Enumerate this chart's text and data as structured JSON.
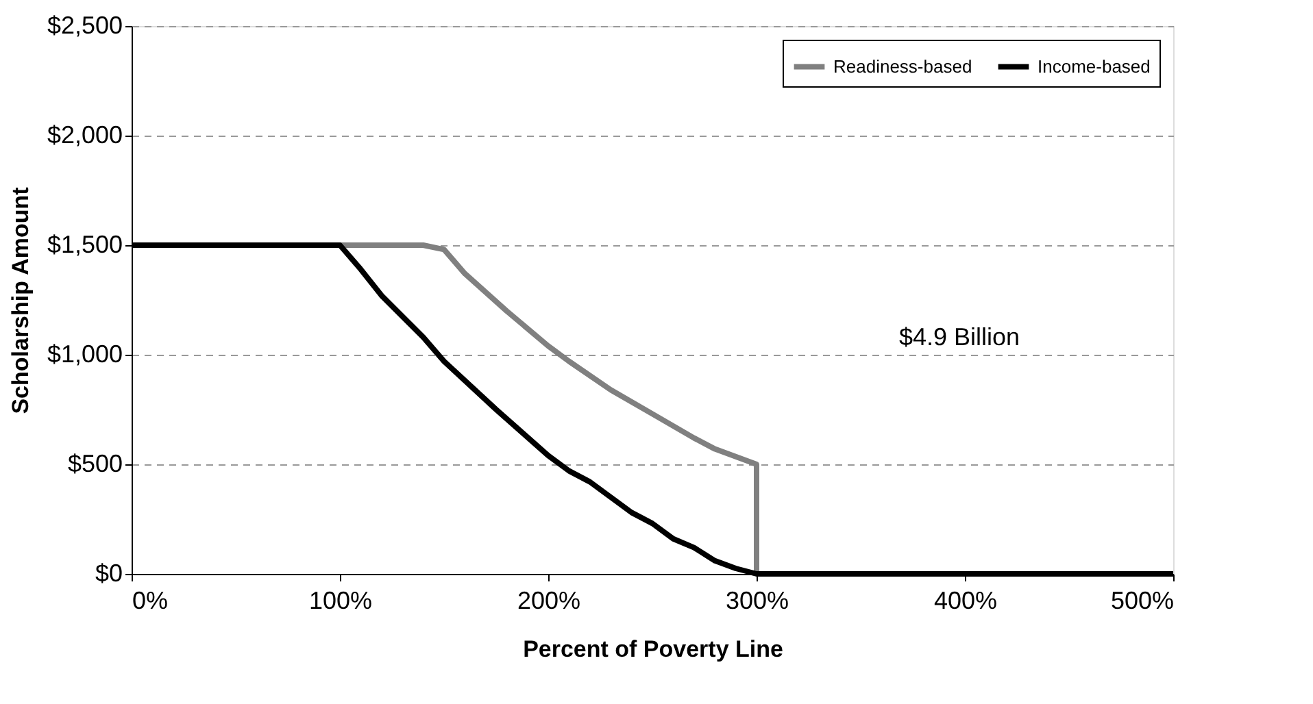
{
  "chart_data": {
    "type": "line",
    "xlabel": "Percent of Poverty Line",
    "ylabel": "Scholarship Amount",
    "series": [
      {
        "name": "Readiness-based",
        "color": "#808080",
        "x": [
          0,
          100,
          140,
          150,
          160,
          180,
          200,
          210,
          230,
          250,
          270,
          280,
          300,
          300
        ],
        "values": [
          1500,
          1500,
          1500,
          1480,
          1370,
          1200,
          1040,
          970,
          840,
          730,
          620,
          570,
          500,
          0
        ]
      },
      {
        "name": "Income-based",
        "color": "#000000",
        "x": [
          0,
          100,
          110,
          120,
          140,
          150,
          175,
          200,
          210,
          220,
          240,
          250,
          260,
          270,
          280,
          290,
          300,
          500
        ],
        "values": [
          1500,
          1500,
          1390,
          1270,
          1080,
          970,
          750,
          540,
          470,
          420,
          280,
          230,
          160,
          120,
          60,
          25,
          0,
          0
        ]
      }
    ],
    "xlim": [
      0,
      500
    ],
    "xticks": [
      {
        "value": 0,
        "label": "0%"
      },
      {
        "value": 100,
        "label": "100%"
      },
      {
        "value": 200,
        "label": "200%"
      },
      {
        "value": 300,
        "label": "300%"
      },
      {
        "value": 400,
        "label": "400%"
      },
      {
        "value": 500,
        "label": "500%"
      }
    ],
    "ylim": [
      0,
      2500
    ],
    "yticks": [
      {
        "value": 0,
        "label": "$0"
      },
      {
        "value": 500,
        "label": "$500"
      },
      {
        "value": 1000,
        "label": "$1,000"
      },
      {
        "value": 1500,
        "label": "$1,500"
      },
      {
        "value": 2000,
        "label": "$2,000"
      },
      {
        "value": 2500,
        "label": "$2,500"
      }
    ],
    "grid": "y",
    "legend": "top right",
    "line_style": "solid",
    "marker": "none",
    "annotations": [
      "$4.9 Billion"
    ]
  }
}
